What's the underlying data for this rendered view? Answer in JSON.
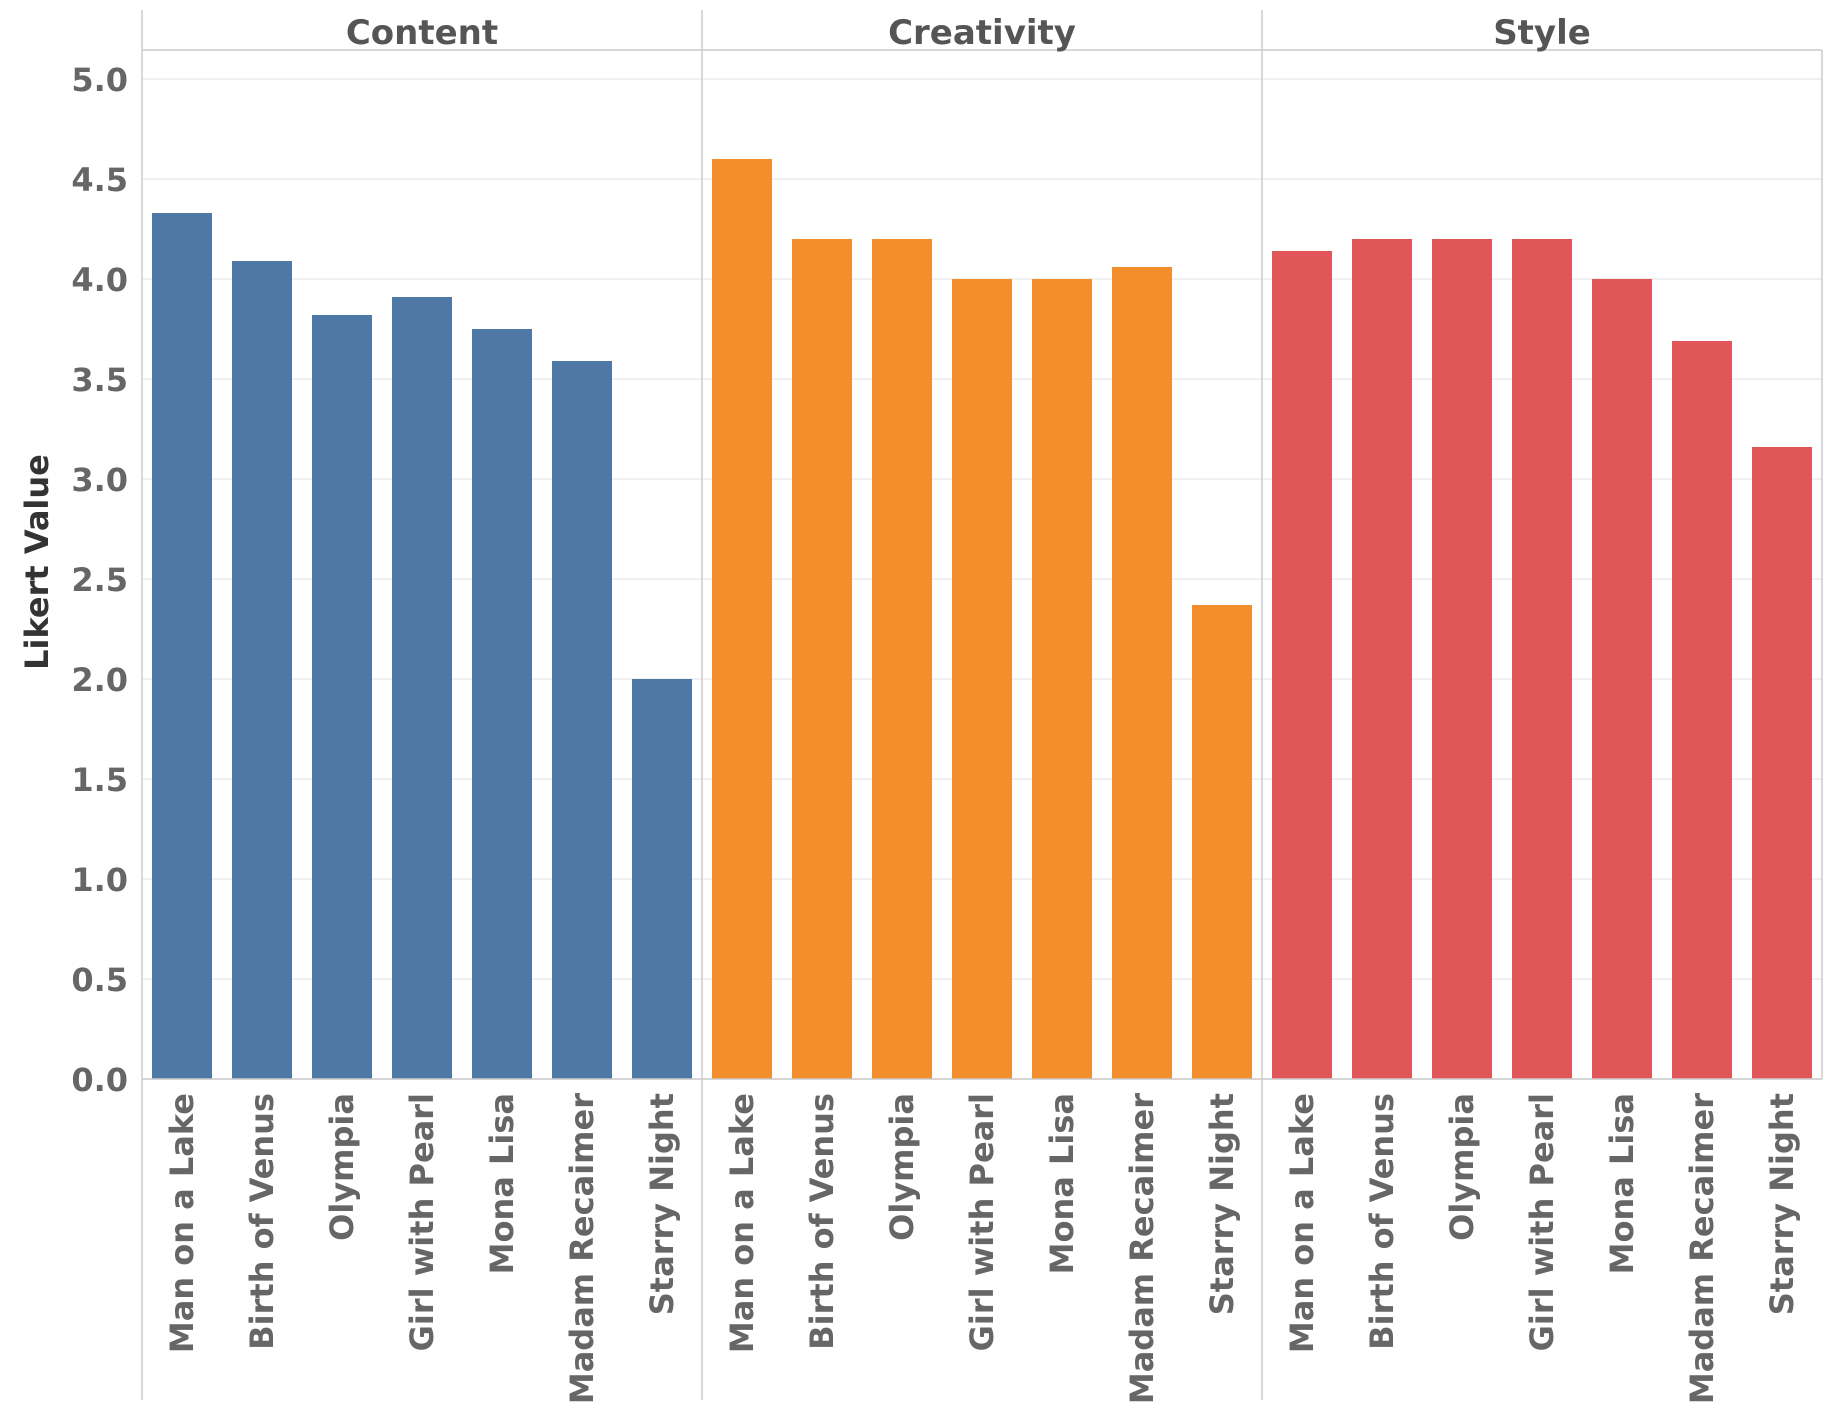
{
  "chart_data": {
    "type": "bar",
    "ylabel": "Likert Value",
    "xlabel": "",
    "ylim": [
      0,
      5.2
    ],
    "yticks": [
      "0.0",
      "0.5",
      "1.0",
      "1.5",
      "2.0",
      "2.5",
      "3.0",
      "3.5",
      "4.0",
      "4.5",
      "5.0"
    ],
    "grid": true,
    "categories": [
      "Man on a Lake",
      "Birth of Venus",
      "Olympia",
      "Girl with Pearl",
      "Mona Lisa",
      "Madam Recaimer",
      "Starry Night"
    ],
    "panels": [
      {
        "name": "Content",
        "color": "#4e79a7",
        "values": [
          4.33,
          4.09,
          3.82,
          3.91,
          3.75,
          3.59,
          2.0
        ]
      },
      {
        "name": "Creativity",
        "color": "#f28e2b",
        "values": [
          4.6,
          4.2,
          4.2,
          4.0,
          4.0,
          4.06,
          2.37
        ]
      },
      {
        "name": "Style",
        "color": "#e15759",
        "values": [
          4.14,
          4.2,
          4.2,
          4.2,
          4.0,
          3.69,
          3.16
        ]
      }
    ]
  }
}
